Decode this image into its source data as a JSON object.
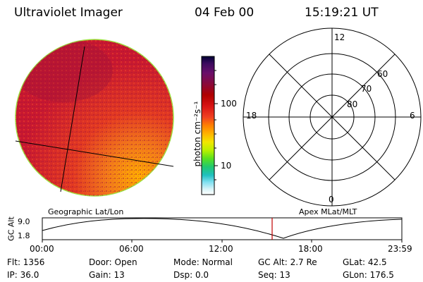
{
  "header": {
    "instrument": "Ultraviolet Imager",
    "date": "04 Feb 00",
    "time": "15:19:21 UT"
  },
  "colorbar": {
    "unit_label": "photon cm⁻²s⁻¹",
    "tick_100": "100",
    "tick_10": "10",
    "colors": [
      "#000033",
      "#3b0a5e",
      "#6a0f6a",
      "#8a0a3a",
      "#b00000",
      "#d81414",
      "#f04020",
      "#ff8000",
      "#ffb300",
      "#f2e600",
      "#b8f000",
      "#58e020",
      "#20c870",
      "#20c0c0",
      "#80e0f0",
      "#d8f4f8",
      "#ffffff"
    ]
  },
  "polar": {
    "label_12": "12",
    "label_18": "18",
    "label_6": "6",
    "label_0": "0",
    "label_60": "60",
    "label_70": "70",
    "label_80": "80"
  },
  "timeline": {
    "left_title": "Geographic Lat/Lon",
    "right_title": "Apex MLat/MLT",
    "axis_title": "GC Alt",
    "y_max": "9.0",
    "y_min": "1.8",
    "ticks": [
      "00:00",
      "06:00",
      "12:00",
      "18:00",
      "23:59"
    ],
    "current_marker_color": "#c00000"
  },
  "info": {
    "flt": "Flt:  1356",
    "ip": "IP:  36.0",
    "door": "Door:  Open",
    "gain": "Gain:  13",
    "mode": "Mode:  Normal",
    "dsp": "Dsp:      0.0",
    "gcalt": "GC Alt:  2.7 Re",
    "seq": "Seq:  13",
    "glat": "GLat:   42.5",
    "glon": "GLon:  176.5"
  }
}
